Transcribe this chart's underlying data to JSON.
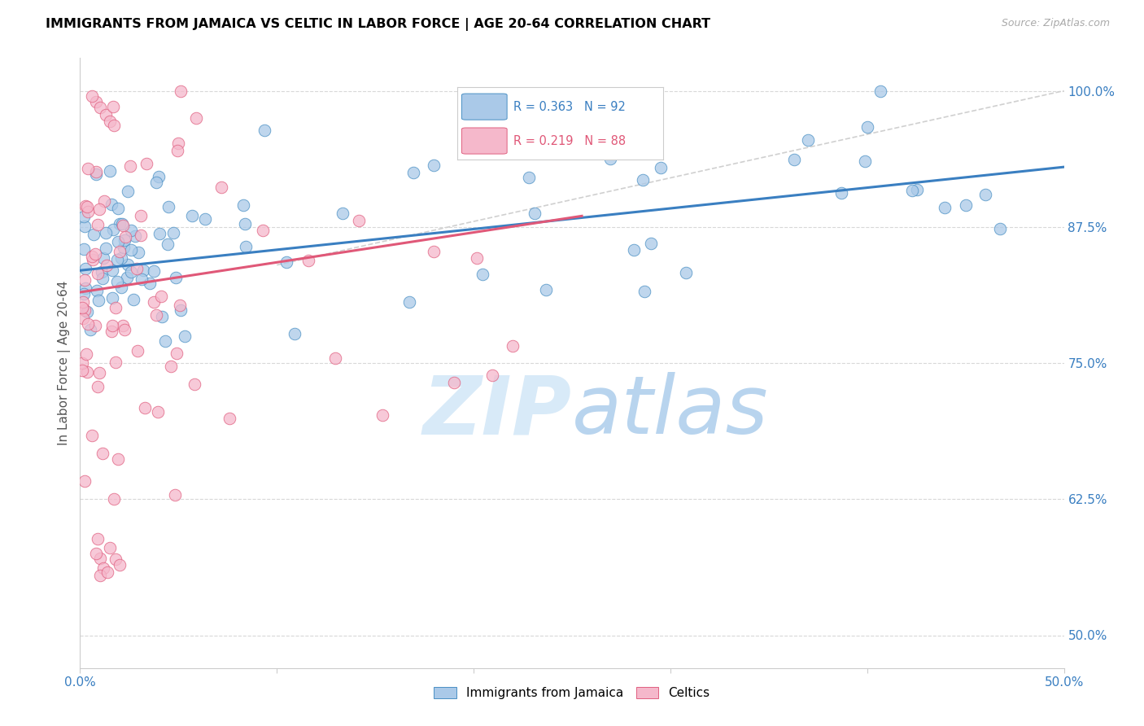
{
  "title": "IMMIGRANTS FROM JAMAICA VS CELTIC IN LABOR FORCE | AGE 20-64 CORRELATION CHART",
  "source": "Source: ZipAtlas.com",
  "ylabel": "In Labor Force | Age 20-64",
  "ytick_labels": [
    "50.0%",
    "62.5%",
    "75.0%",
    "87.5%",
    "100.0%"
  ],
  "ytick_values": [
    0.5,
    0.625,
    0.75,
    0.875,
    1.0
  ],
  "xlim": [
    0.0,
    0.5
  ],
  "ylim": [
    0.47,
    1.03
  ],
  "legend_blue_r": "0.363",
  "legend_blue_n": "92",
  "legend_pink_r": "0.219",
  "legend_pink_n": "88",
  "blue_color": "#aac9e8",
  "pink_color": "#f5b8cb",
  "blue_edge_color": "#4a90c4",
  "pink_edge_color": "#e06080",
  "blue_line_color": "#3a7fc1",
  "pink_line_color": "#e05878",
  "diag_line_color": "#d0d0d0",
  "grid_color": "#d8d8d8",
  "watermark_color": "#d8eaf8",
  "title_fontsize": 11.5,
  "source_fontsize": 9,
  "tick_fontsize": 11,
  "ylabel_fontsize": 11
}
